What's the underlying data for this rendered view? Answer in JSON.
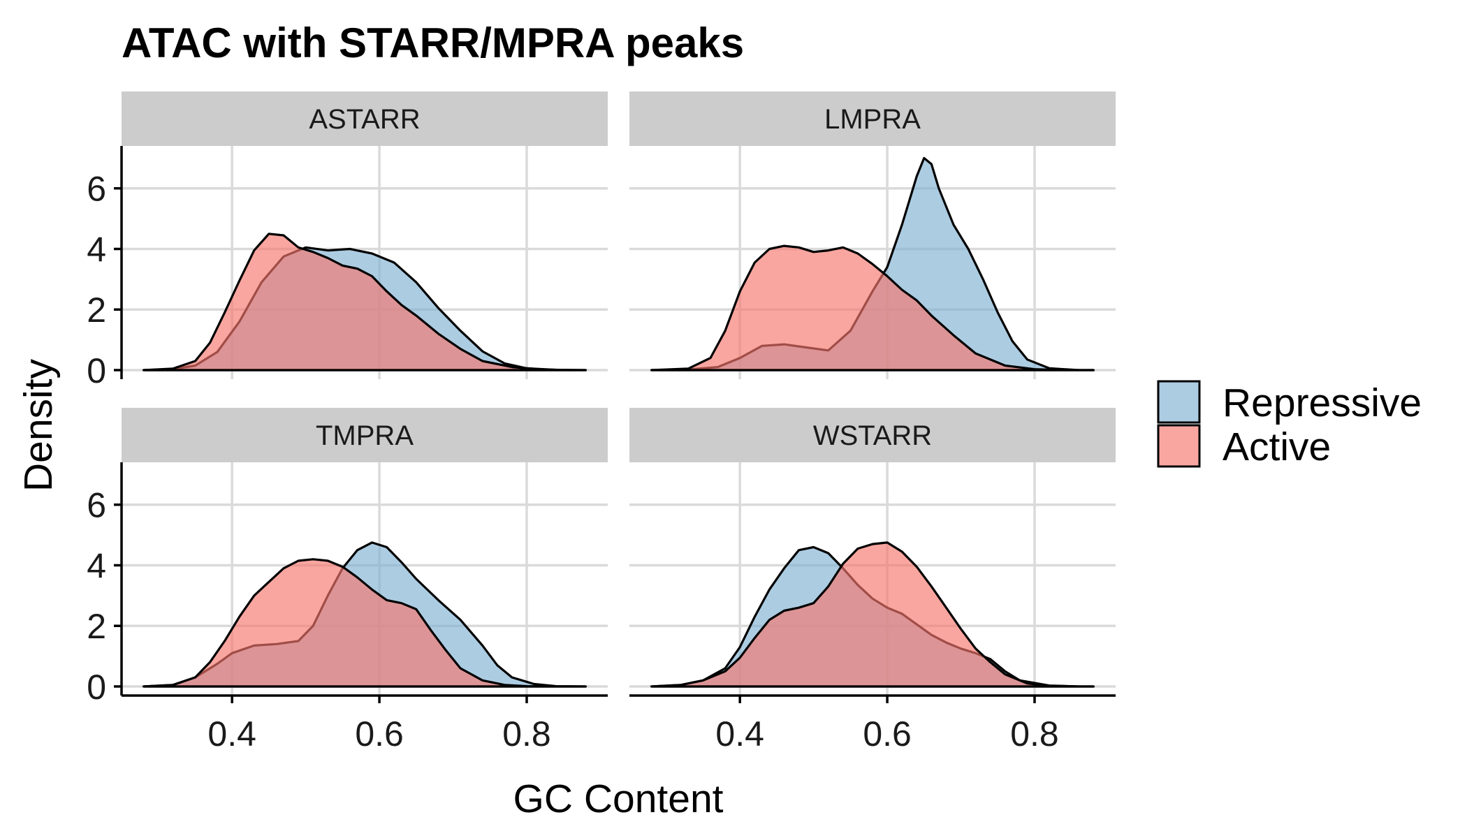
{
  "chart_data": {
    "type": "area",
    "title": "ATAC with STARR/MPRA peaks",
    "xlabel": "GC Content",
    "ylabel": "Density",
    "xlim": [
      0.25,
      0.91
    ],
    "ylim": [
      -0.3,
      7.4
    ],
    "x_ticks": [
      "0.4",
      "0.6",
      "0.8"
    ],
    "y_ticks": [
      "0",
      "2",
      "4",
      "6"
    ],
    "grid": true,
    "legend_position": "right",
    "legend": [
      {
        "label": "Repressive",
        "color": "#7fb1d3"
      },
      {
        "label": "Active",
        "color": "#f8766d"
      }
    ],
    "fill_opacity": 0.65,
    "panels": [
      {
        "label": "ASTARR",
        "series": [
          {
            "name": "Repressive",
            "x": [
              0.28,
              0.32,
              0.35,
              0.38,
              0.41,
              0.44,
              0.47,
              0.5,
              0.53,
              0.56,
              0.59,
              0.62,
              0.65,
              0.68,
              0.71,
              0.74,
              0.77,
              0.8,
              0.84,
              0.88
            ],
            "y": [
              0,
              0.03,
              0.15,
              0.6,
              1.6,
              2.9,
              3.75,
              4.05,
              3.95,
              4.0,
              3.85,
              3.55,
              2.9,
              2.05,
              1.3,
              0.62,
              0.22,
              0.06,
              0.01,
              0
            ]
          },
          {
            "name": "Active",
            "x": [
              0.28,
              0.32,
              0.35,
              0.37,
              0.39,
              0.41,
              0.43,
              0.45,
              0.47,
              0.49,
              0.51,
              0.53,
              0.55,
              0.57,
              0.59,
              0.61,
              0.63,
              0.65,
              0.68,
              0.71,
              0.74,
              0.78,
              0.82,
              0.86,
              0.88
            ],
            "y": [
              0,
              0.05,
              0.3,
              0.9,
              1.9,
              2.95,
              3.95,
              4.5,
              4.45,
              4.05,
              3.9,
              3.7,
              3.45,
              3.35,
              3.1,
              2.6,
              2.15,
              1.8,
              1.2,
              0.7,
              0.3,
              0.1,
              0.02,
              0,
              0
            ]
          }
        ]
      },
      {
        "label": "LMPRA",
        "series": [
          {
            "name": "Repressive",
            "x": [
              0.28,
              0.33,
              0.37,
              0.4,
              0.43,
              0.46,
              0.49,
              0.52,
              0.55,
              0.58,
              0.6,
              0.62,
              0.64,
              0.65,
              0.66,
              0.67,
              0.69,
              0.71,
              0.73,
              0.75,
              0.77,
              0.79,
              0.82,
              0.86,
              0.88
            ],
            "y": [
              0,
              0.02,
              0.1,
              0.4,
              0.8,
              0.85,
              0.75,
              0.65,
              1.3,
              2.6,
              3.4,
              4.8,
              6.4,
              7.0,
              6.8,
              6.0,
              4.8,
              4.0,
              3.0,
              1.9,
              0.95,
              0.35,
              0.06,
              0,
              0
            ]
          },
          {
            "name": "Active",
            "x": [
              0.28,
              0.33,
              0.36,
              0.38,
              0.4,
              0.42,
              0.44,
              0.46,
              0.48,
              0.5,
              0.52,
              0.54,
              0.56,
              0.58,
              0.6,
              0.62,
              0.64,
              0.66,
              0.69,
              0.72,
              0.76,
              0.8,
              0.84,
              0.88
            ],
            "y": [
              0,
              0.05,
              0.4,
              1.3,
              2.6,
              3.55,
              4.0,
              4.1,
              4.05,
              3.9,
              3.95,
              4.05,
              3.85,
              3.5,
              3.1,
              2.65,
              2.3,
              1.8,
              1.15,
              0.55,
              0.15,
              0.03,
              0,
              0
            ]
          }
        ]
      },
      {
        "label": "TMPRA",
        "series": [
          {
            "name": "Repressive",
            "x": [
              0.28,
              0.32,
              0.35,
              0.38,
              0.4,
              0.43,
              0.46,
              0.49,
              0.51,
              0.53,
              0.55,
              0.57,
              0.59,
              0.61,
              0.63,
              0.65,
              0.68,
              0.71,
              0.74,
              0.76,
              0.78,
              0.81,
              0.84,
              0.88
            ],
            "y": [
              0,
              0.05,
              0.3,
              0.75,
              1.1,
              1.35,
              1.4,
              1.5,
              2.0,
              3.0,
              3.9,
              4.5,
              4.75,
              4.6,
              4.1,
              3.55,
              2.85,
              2.2,
              1.35,
              0.7,
              0.3,
              0.08,
              0.01,
              0
            ]
          },
          {
            "name": "Active",
            "x": [
              0.28,
              0.32,
              0.35,
              0.37,
              0.39,
              0.41,
              0.43,
              0.45,
              0.47,
              0.49,
              0.51,
              0.53,
              0.55,
              0.57,
              0.59,
              0.61,
              0.63,
              0.65,
              0.67,
              0.69,
              0.71,
              0.74,
              0.77,
              0.8,
              0.84,
              0.88
            ],
            "y": [
              0,
              0.05,
              0.3,
              0.8,
              1.5,
              2.3,
              3.0,
              3.45,
              3.9,
              4.15,
              4.2,
              4.15,
              3.95,
              3.6,
              3.2,
              2.85,
              2.75,
              2.55,
              1.85,
              1.2,
              0.6,
              0.2,
              0.05,
              0.01,
              0,
              0
            ]
          }
        ]
      },
      {
        "label": "WSTARR",
        "series": [
          {
            "name": "Repressive",
            "x": [
              0.28,
              0.32,
              0.35,
              0.38,
              0.4,
              0.42,
              0.44,
              0.46,
              0.48,
              0.5,
              0.52,
              0.54,
              0.56,
              0.58,
              0.6,
              0.62,
              0.64,
              0.66,
              0.68,
              0.7,
              0.72,
              0.74,
              0.76,
              0.78,
              0.82,
              0.86,
              0.88
            ],
            "y": [
              0,
              0.05,
              0.2,
              0.6,
              1.3,
              2.3,
              3.2,
              3.9,
              4.5,
              4.6,
              4.4,
              3.9,
              3.35,
              2.9,
              2.6,
              2.4,
              2.05,
              1.7,
              1.45,
              1.25,
              1.1,
              0.9,
              0.5,
              0.2,
              0.03,
              0,
              0
            ]
          },
          {
            "name": "Active",
            "x": [
              0.28,
              0.32,
              0.35,
              0.38,
              0.4,
              0.42,
              0.44,
              0.46,
              0.48,
              0.5,
              0.52,
              0.54,
              0.56,
              0.58,
              0.6,
              0.62,
              0.64,
              0.66,
              0.68,
              0.7,
              0.72,
              0.74,
              0.76,
              0.79,
              0.82,
              0.86,
              0.88
            ],
            "y": [
              0,
              0.05,
              0.2,
              0.5,
              0.95,
              1.6,
              2.2,
              2.5,
              2.6,
              2.75,
              3.3,
              4.05,
              4.55,
              4.7,
              4.75,
              4.45,
              3.95,
              3.3,
              2.6,
              1.9,
              1.25,
              0.8,
              0.4,
              0.1,
              0.02,
              0,
              0
            ]
          }
        ]
      }
    ]
  }
}
